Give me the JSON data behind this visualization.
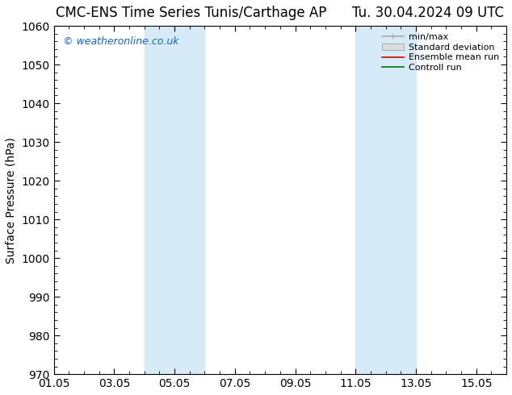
{
  "title": "CMC-ENS Time Series Tunis/Carthage AP",
  "title2": "Tu. 30.04.2024 09 UTC",
  "ylabel": "Surface Pressure (hPa)",
  "ylim": [
    970,
    1060
  ],
  "yticks": [
    970,
    980,
    990,
    1000,
    1010,
    1020,
    1030,
    1040,
    1050,
    1060
  ],
  "xstart_day": 1,
  "xend_day": 16,
  "xtick_labels": [
    "01.05",
    "03.05",
    "05.05",
    "07.05",
    "09.05",
    "11.05",
    "13.05",
    "15.05"
  ],
  "xtick_days": [
    1,
    3,
    5,
    7,
    9,
    11,
    13,
    15
  ],
  "shade_bands": [
    {
      "start_day": 4,
      "end_day": 6
    },
    {
      "start_day": 11,
      "end_day": 13
    }
  ],
  "shade_color": "#d6eaf8",
  "watermark": "© weatheronline.co.uk",
  "watermark_color": "#1565c0",
  "legend_labels": [
    "min/max",
    "Standard deviation",
    "Ensemble mean run",
    "Controll run"
  ],
  "legend_line_color": "#aaaaaa",
  "legend_patch_color": "#dddddd",
  "legend_red": "#cc0000",
  "legend_green": "#007700",
  "bg_color": "#ffffff",
  "tick_label_fontsize": 10,
  "title_fontsize": 12,
  "ylabel_fontsize": 10
}
